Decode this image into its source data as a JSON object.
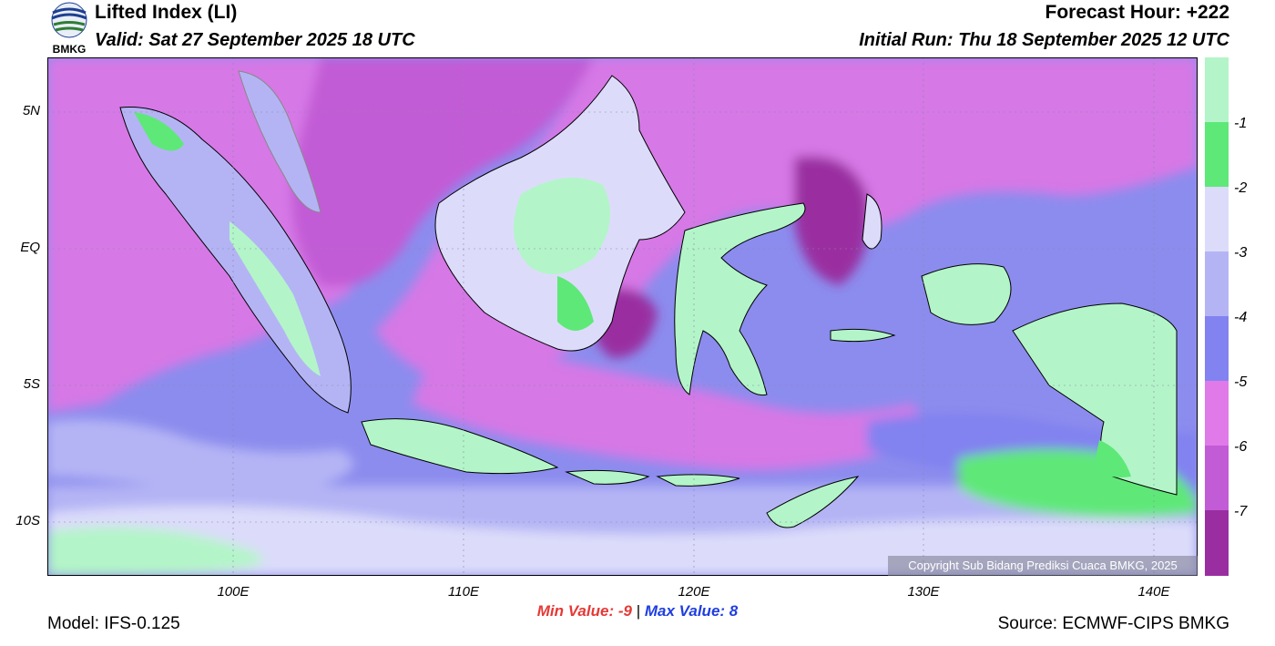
{
  "header": {
    "logo_text": "BMKG",
    "title": "Lifted Index (LI)",
    "valid": "Valid: Sat 27 September 2025 18 UTC",
    "forecast_hour": "Forecast Hour: +222",
    "initial_run": "Initial Run: Thu 18 September 2025 12 UTC"
  },
  "map": {
    "lat_ticks": [
      "5N",
      "EQ",
      "5S",
      "10S"
    ],
    "lon_ticks": [
      "100E",
      "110E",
      "120E",
      "130E",
      "140E"
    ],
    "copyright": "Copyright Sub Bidang Prediksi Cuaca BMKG, 2025"
  },
  "colorbar": {
    "levels": [
      "-1",
      "-2",
      "-3",
      "-4",
      "-5",
      "-6",
      "-7"
    ],
    "colors": [
      "#b3f5c8",
      "#5ee878",
      "#b3f5c8",
      "#dcdcfa",
      "#b4b4f5",
      "#8282f0",
      "#e07ae8",
      "#c25bd6",
      "#9a2ea0"
    ]
  },
  "footer": {
    "model": "Model: IFS-0.125",
    "min_label": "Min Value:",
    "min_value": "-9",
    "separator": "|",
    "max_label": "Max Value:",
    "max_value": "8",
    "source": "Source: ECMWF-CIPS BMKG"
  }
}
